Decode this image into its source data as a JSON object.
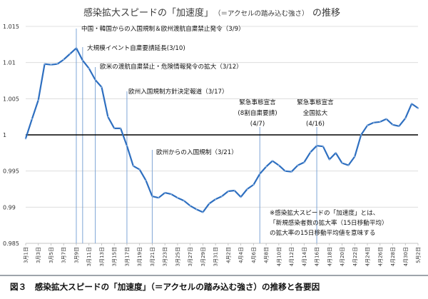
{
  "title": {
    "main": "感染拡大スピードの「加速度」",
    "paren": "（＝アクセルの踏み込む強さ）",
    "suffix": "の推移"
  },
  "caption": "図３　感染拡大スピードの「加速度」（＝アクセルの踏み込む強さ）の推移と各要因",
  "note": [
    "※感染拡大スピードの「加速度」とは、",
    "「新規感染者数の拡大率（15日移動平均）",
    "の拡大率の15日移動平均値を意味する"
  ],
  "annotations": [
    {
      "lines": [
        "中国・韓国からの入国規制＆欧州渡航自粛禁止発令（3/9）"
      ],
      "date": "3/9"
    },
    {
      "lines": [
        "大規模イベント自粛要請延長(3/10)"
      ],
      "date": "3/10"
    },
    {
      "lines": [
        "欧米の渡航自粛禁止・危険情報発令の拡大（3/12）"
      ],
      "date": "3/12"
    },
    {
      "lines": [
        "欧州入国規制方針決定報道（3/17）"
      ],
      "date": "3/17"
    },
    {
      "lines": [
        "欧州からの入国規制（3/21）"
      ],
      "date": "3/21"
    },
    {
      "lines": [
        "緊急事態宣言",
        "(8割自粛要請)",
        "(4/7)"
      ],
      "date": "4/7"
    },
    {
      "lines": [
        "緊急事態宣言",
        "全国拡大",
        "(4/16)"
      ],
      "date": "4/16"
    }
  ],
  "colors": {
    "line": "#2e6fc0",
    "marker": "#8fb4e0",
    "baseline": "#000000",
    "grid": "#d8d8d8"
  },
  "chart_data": {
    "type": "line",
    "ylim": [
      0.985,
      1.015
    ],
    "yticks": [
      "0.985",
      "0.99",
      "0.995",
      "1",
      "1.005",
      "1.01",
      "1.015"
    ],
    "reference_line": 1,
    "grid": "horizontal",
    "x_labels": [
      "3月1日",
      "3月3日",
      "3月5日",
      "3月7日",
      "3月9日",
      "3月11日",
      "3月13日",
      "3月15日",
      "3月17日",
      "3月19日",
      "3月21日",
      "3月23日",
      "3月25日",
      "3月27日",
      "3月29日",
      "3月31日",
      "4月2日",
      "4月4日",
      "4月6日",
      "4月8日",
      "4月10日",
      "4月12日",
      "4月14日",
      "4月16日",
      "4月18日",
      "4月20日",
      "4月22日",
      "4月24日",
      "4月26日",
      "4月28日",
      "4月30日",
      "5月2日"
    ],
    "series": [
      {
        "name": "",
        "x": [
          "3/1",
          "3/2",
          "3/3",
          "3/4",
          "3/5",
          "3/6",
          "3/7",
          "3/8",
          "3/9",
          "3/10",
          "3/11",
          "3/12",
          "3/13",
          "3/14",
          "3/15",
          "3/16",
          "3/17",
          "3/18",
          "3/19",
          "3/20",
          "3/21",
          "3/22",
          "3/23",
          "3/24",
          "3/25",
          "3/26",
          "3/27",
          "3/28",
          "3/29",
          "3/30",
          "3/31",
          "4/1",
          "4/2",
          "4/3",
          "4/4",
          "4/5",
          "4/6",
          "4/7",
          "4/8",
          "4/9",
          "4/10",
          "4/11",
          "4/12",
          "4/13",
          "4/14",
          "4/15",
          "4/16",
          "4/17",
          "4/18",
          "4/19",
          "4/20",
          "4/21",
          "4/22",
          "4/23",
          "4/24",
          "4/25",
          "4/26",
          "4/27",
          "4/28",
          "4/29",
          "4/30",
          "5/1",
          "5/2"
        ],
        "values": [
          0.9995,
          1.0022,
          1.0048,
          1.0098,
          1.0097,
          1.0098,
          1.0104,
          1.0112,
          1.012,
          1.0103,
          1.0092,
          1.0076,
          1.0066,
          1.0025,
          1.0009,
          1.0009,
          0.9985,
          0.9957,
          0.9952,
          0.9937,
          0.9915,
          0.9913,
          0.992,
          0.9918,
          0.9913,
          0.9909,
          0.9902,
          0.9897,
          0.9893,
          0.9905,
          0.9911,
          0.9915,
          0.9922,
          0.9923,
          0.9914,
          0.9925,
          0.9931,
          0.9946,
          0.9956,
          0.9964,
          0.9958,
          0.995,
          0.9949,
          0.9958,
          0.9962,
          0.9976,
          0.9985,
          0.9984,
          0.9966,
          0.9975,
          0.9961,
          0.9958,
          0.997,
          1.0,
          1.0013,
          1.0017,
          1.0018,
          1.0022,
          1.0014,
          1.0012,
          1.0023,
          1.0043,
          1.0037
        ]
      }
    ]
  }
}
